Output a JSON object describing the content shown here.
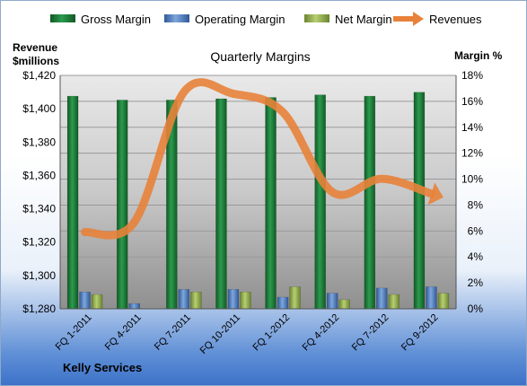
{
  "chart_data": {
    "type": "bar",
    "title": "Quarterly Margins",
    "company": "Kelly Services",
    "left_axis_label": [
      "Revenue",
      "$millions"
    ],
    "right_axis_label": "Margin %",
    "categories": [
      "FQ 1-2011",
      "FQ 4-2011",
      "FQ 7-2011",
      "FQ 10-2011",
      "FQ 1-2012",
      "FQ 4-2012",
      "FQ 7-2012",
      "FQ 9-2012"
    ],
    "left_ylim": [
      1280,
      1420
    ],
    "left_ticks": [
      1280,
      1300,
      1320,
      1340,
      1360,
      1380,
      1400,
      1420
    ],
    "left_tick_labels": [
      "$1,280",
      "$1,300",
      "$1,320",
      "$1,340",
      "$1,360",
      "$1,380",
      "$1,400",
      "$1,420"
    ],
    "right_ylim": [
      0,
      18
    ],
    "right_ticks": [
      0,
      2,
      4,
      6,
      8,
      10,
      12,
      14,
      16,
      18
    ],
    "right_tick_labels": [
      "0%",
      "2%",
      "4%",
      "6%",
      "8%",
      "10%",
      "12%",
      "14%",
      "16%",
      "18%"
    ],
    "series": [
      {
        "name": "Gross Margin",
        "axis": "right",
        "kind": "bar",
        "color": "#1e7a3a",
        "values": [
          16.4,
          16.1,
          16.1,
          16.2,
          16.3,
          16.5,
          16.4,
          16.7
        ]
      },
      {
        "name": "Operating Margin",
        "axis": "right",
        "kind": "bar",
        "color": "#4a78b8",
        "values": [
          1.3,
          0.4,
          1.5,
          1.5,
          0.9,
          1.2,
          1.6,
          1.7
        ]
      },
      {
        "name": "Net Margin",
        "axis": "right",
        "kind": "bar",
        "color": "#8ea84a",
        "values": [
          1.1,
          0.0,
          1.3,
          1.3,
          1.7,
          0.7,
          1.1,
          1.2
        ]
      },
      {
        "name": "Revenues",
        "axis": "left",
        "kind": "line",
        "color": "#e8823a",
        "values": [
          1326,
          1332,
          1410,
          1409,
          1398,
          1350,
          1358,
          1349
        ]
      }
    ],
    "legend_position": "top",
    "grid": true
  }
}
